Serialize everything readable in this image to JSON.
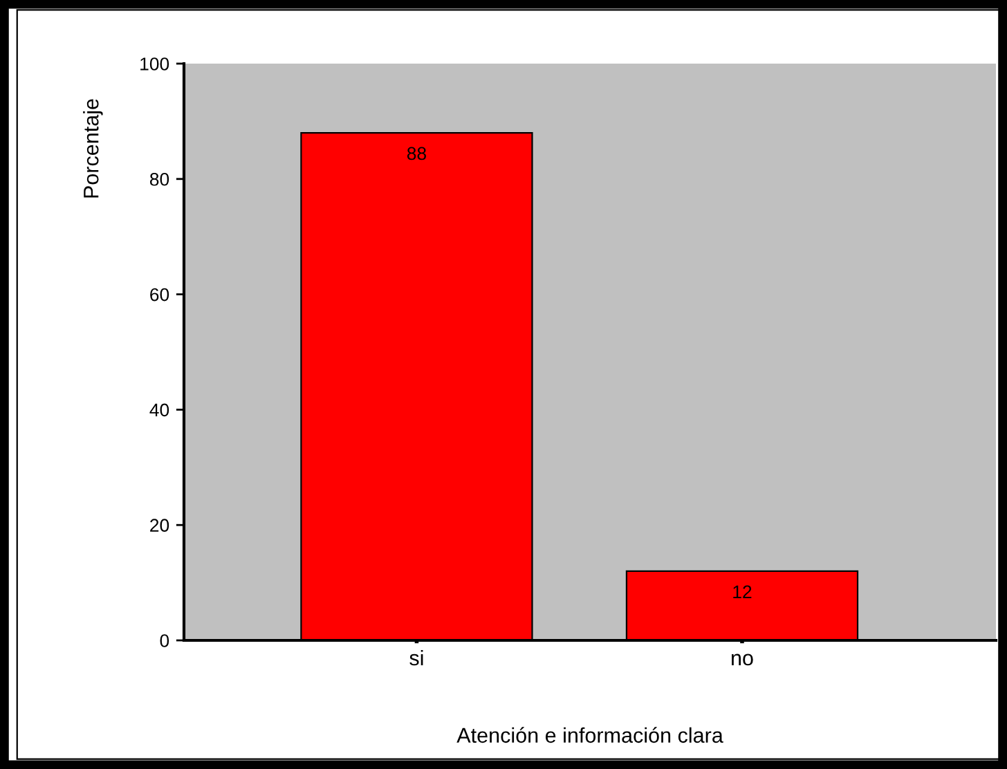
{
  "chart_data": {
    "type": "bar",
    "xlabel": "Atención e información clara",
    "ylabel": "Porcentaje",
    "categories": [
      "si",
      "no"
    ],
    "values": [
      88,
      12
    ],
    "color": "#ff0000",
    "ylim": [
      0,
      100
    ],
    "yticks": [
      0,
      20,
      40,
      60,
      80,
      100
    ],
    "grid": false,
    "data_labels": true
  }
}
